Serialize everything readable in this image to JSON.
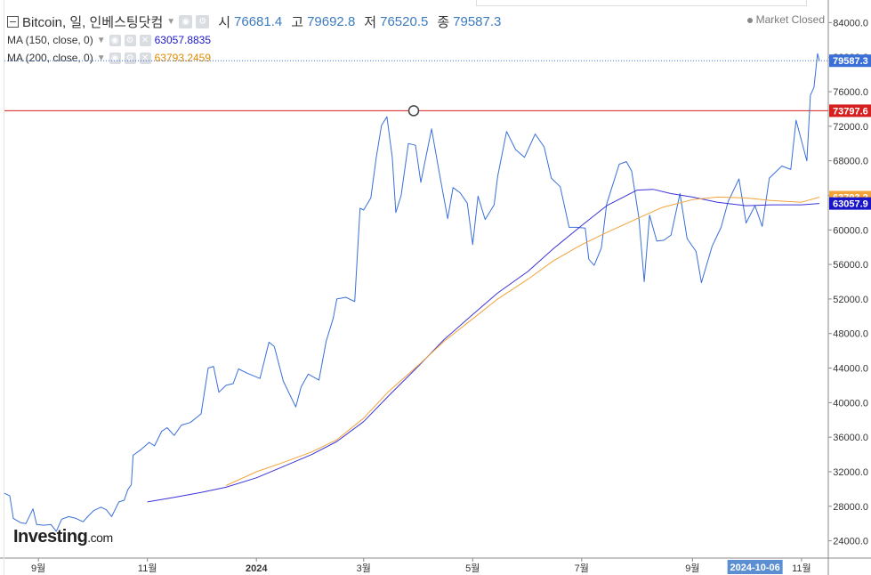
{
  "header": {
    "symbol": "Bitcoin, 일, 인베스팅닷컴",
    "open_key": "시",
    "open": "76681.4",
    "high_key": "고",
    "high": "79692.8",
    "low_key": "저",
    "low": "76520.5",
    "close_key": "종",
    "close": "79587.3",
    "ma150_label": "MA (150, close, 0)",
    "ma150_value": "63057.8835",
    "ma200_label": "MA (200, close, 0)",
    "ma200_value": "63793.2459",
    "market_status": "Market Closed"
  },
  "logo": {
    "main": "Investing",
    "suffix": ".com"
  },
  "colors": {
    "price": "#3a6fd8",
    "ma150": "#3b33d9",
    "ma200": "#f2a33a",
    "hline": "#d62020",
    "last_tag": "#3a6fd8",
    "hline_tag": "#d62020",
    "ma200_tag": "#f2a33a",
    "ma150_tag": "#1a16c7",
    "date_tag": "#5b8fd1"
  },
  "icons": [
    "collapse-icon",
    "eye-icon",
    "settings-icon",
    "close-icon",
    "dropdown-caret-icon"
  ],
  "chart_data": {
    "type": "line",
    "y_range": [
      22000,
      86000
    ],
    "y_ticks": [
      24000,
      28000,
      32000,
      36000,
      40000,
      44000,
      48000,
      52000,
      56000,
      60000,
      64000,
      68000,
      72000,
      76000,
      80000,
      84000
    ],
    "y_tick_labels": [
      "24000.0",
      "28000.0",
      "32000.0",
      "36000.0",
      "40000.0",
      "44000.0",
      "48000.0",
      "52000.0",
      "56000.0",
      "60000.0",
      "64000.0",
      "68000.0",
      "72000.0",
      "76000.0",
      "80000.0",
      "84000.0"
    ],
    "x_range": [
      "2023-08-13",
      "2024-11-16"
    ],
    "x_ticks": [
      {
        "date": "2023-09-01",
        "label": "9월",
        "bold": false
      },
      {
        "date": "2023-11-01",
        "label": "11월",
        "bold": false
      },
      {
        "date": "2024-01-01",
        "label": "2024",
        "bold": true
      },
      {
        "date": "2024-03-01",
        "label": "3월",
        "bold": false
      },
      {
        "date": "2024-05-01",
        "label": "5월",
        "bold": false
      },
      {
        "date": "2024-07-01",
        "label": "7월",
        "bold": false
      },
      {
        "date": "2024-09-01",
        "label": "9월",
        "bold": false
      },
      {
        "date": "2024-11-01",
        "label": "11월",
        "bold": false
      }
    ],
    "x_cursor_label": {
      "date": "2024-10-06",
      "label": "2024-10-06"
    },
    "horizontal_line": {
      "value": 73797.6,
      "label": "73797.6",
      "anchor_date": "2024-03-29"
    },
    "last_price_label": {
      "value": 79587.3,
      "label": "79587.3"
    },
    "ma_labels": [
      {
        "name": "MA (200, close, 0)",
        "value": 63793.2,
        "label": "63793.2"
      },
      {
        "name": "MA (150, close, 0)",
        "value": 63057.9,
        "label": "63057.9"
      }
    ],
    "series": [
      {
        "name": "Bitcoin",
        "points": [
          [
            "2023-08-13",
            29500
          ],
          [
            "2023-08-16",
            29200
          ],
          [
            "2023-08-18",
            26600
          ],
          [
            "2023-08-22",
            26100
          ],
          [
            "2023-08-25",
            26000
          ],
          [
            "2023-08-29",
            27700
          ],
          [
            "2023-08-31",
            25900
          ],
          [
            "2023-09-04",
            25800
          ],
          [
            "2023-09-08",
            25900
          ],
          [
            "2023-09-11",
            25100
          ],
          [
            "2023-09-14",
            26500
          ],
          [
            "2023-09-18",
            26800
          ],
          [
            "2023-09-22",
            26600
          ],
          [
            "2023-09-26",
            26200
          ],
          [
            "2023-09-29",
            26900
          ],
          [
            "2023-10-02",
            27500
          ],
          [
            "2023-10-06",
            27900
          ],
          [
            "2023-10-09",
            27600
          ],
          [
            "2023-10-12",
            26800
          ],
          [
            "2023-10-16",
            28500
          ],
          [
            "2023-10-19",
            28700
          ],
          [
            "2023-10-21",
            29900
          ],
          [
            "2023-10-23",
            30500
          ],
          [
            "2023-10-24",
            33900
          ],
          [
            "2023-10-28",
            34500
          ],
          [
            "2023-11-02",
            35400
          ],
          [
            "2023-11-05",
            35000
          ],
          [
            "2023-11-09",
            36700
          ],
          [
            "2023-11-12",
            37100
          ],
          [
            "2023-11-16",
            36200
          ],
          [
            "2023-11-20",
            37400
          ],
          [
            "2023-11-25",
            37700
          ],
          [
            "2023-12-01",
            38700
          ],
          [
            "2023-12-05",
            44000
          ],
          [
            "2023-12-08",
            44200
          ],
          [
            "2023-12-11",
            41200
          ],
          [
            "2023-12-15",
            42000
          ],
          [
            "2023-12-19",
            42200
          ],
          [
            "2023-12-22",
            43900
          ],
          [
            "2023-12-27",
            43400
          ],
          [
            "2024-01-03",
            42800
          ],
          [
            "2024-01-08",
            47000
          ],
          [
            "2024-01-11",
            46500
          ],
          [
            "2024-01-16",
            42500
          ],
          [
            "2024-01-23",
            39500
          ],
          [
            "2024-01-26",
            41800
          ],
          [
            "2024-01-30",
            43300
          ],
          [
            "2024-02-05",
            42600
          ],
          [
            "2024-02-09",
            47100
          ],
          [
            "2024-02-13",
            49800
          ],
          [
            "2024-02-15",
            52000
          ],
          [
            "2024-02-20",
            52200
          ],
          [
            "2024-02-25",
            51700
          ],
          [
            "2024-02-28",
            62500
          ],
          [
            "2024-03-01",
            62300
          ],
          [
            "2024-03-05",
            63700
          ],
          [
            "2024-03-08",
            68300
          ],
          [
            "2024-03-11",
            72100
          ],
          [
            "2024-03-14",
            73100
          ],
          [
            "2024-03-17",
            68400
          ],
          [
            "2024-03-19",
            62000
          ],
          [
            "2024-03-22",
            64000
          ],
          [
            "2024-03-26",
            70000
          ],
          [
            "2024-03-30",
            69800
          ],
          [
            "2024-04-02",
            65500
          ],
          [
            "2024-04-08",
            71700
          ],
          [
            "2024-04-12",
            67000
          ],
          [
            "2024-04-17",
            61300
          ],
          [
            "2024-04-20",
            64900
          ],
          [
            "2024-04-24",
            64300
          ],
          [
            "2024-04-28",
            63100
          ],
          [
            "2024-05-01",
            58300
          ],
          [
            "2024-05-04",
            63900
          ],
          [
            "2024-05-08",
            61200
          ],
          [
            "2024-05-13",
            62900
          ],
          [
            "2024-05-15",
            66200
          ],
          [
            "2024-05-20",
            71400
          ],
          [
            "2024-05-25",
            69300
          ],
          [
            "2024-05-30",
            68400
          ],
          [
            "2024-06-05",
            71100
          ],
          [
            "2024-06-10",
            69600
          ],
          [
            "2024-06-14",
            66000
          ],
          [
            "2024-06-19",
            65000
          ],
          [
            "2024-06-24",
            60300
          ],
          [
            "2024-06-28",
            60300
          ],
          [
            "2024-07-03",
            60200
          ],
          [
            "2024-07-05",
            56600
          ],
          [
            "2024-07-08",
            55900
          ],
          [
            "2024-07-12",
            57900
          ],
          [
            "2024-07-15",
            63000
          ],
          [
            "2024-07-22",
            67600
          ],
          [
            "2024-07-26",
            67900
          ],
          [
            "2024-07-29",
            66800
          ],
          [
            "2024-08-02",
            61400
          ],
          [
            "2024-08-05",
            54000
          ],
          [
            "2024-08-08",
            61700
          ],
          [
            "2024-08-12",
            58700
          ],
          [
            "2024-08-16",
            58800
          ],
          [
            "2024-08-20",
            59400
          ],
          [
            "2024-08-25",
            64200
          ],
          [
            "2024-08-29",
            59000
          ],
          [
            "2024-09-03",
            57500
          ],
          [
            "2024-09-06",
            53900
          ],
          [
            "2024-09-12",
            58100
          ],
          [
            "2024-09-17",
            60300
          ],
          [
            "2024-09-21",
            63300
          ],
          [
            "2024-09-27",
            65900
          ],
          [
            "2024-10-01",
            60800
          ],
          [
            "2024-10-06",
            62800
          ],
          [
            "2024-10-10",
            60400
          ],
          [
            "2024-10-14",
            66000
          ],
          [
            "2024-10-21",
            67400
          ],
          [
            "2024-10-26",
            67000
          ],
          [
            "2024-10-29",
            72700
          ],
          [
            "2024-11-04",
            68000
          ],
          [
            "2024-11-06",
            75600
          ],
          [
            "2024-11-08",
            76500
          ],
          [
            "2024-11-10",
            80400
          ],
          [
            "2024-11-11",
            79587.3
          ]
        ]
      },
      {
        "name": "MA (150, close, 0)",
        "points": [
          [
            "2023-11-01",
            28500
          ],
          [
            "2023-11-15",
            29000
          ],
          [
            "2023-12-01",
            29600
          ],
          [
            "2023-12-15",
            30200
          ],
          [
            "2024-01-01",
            31300
          ],
          [
            "2024-01-15",
            32500
          ],
          [
            "2024-02-01",
            34000
          ],
          [
            "2024-02-15",
            35500
          ],
          [
            "2024-03-01",
            37800
          ],
          [
            "2024-03-15",
            40800
          ],
          [
            "2024-04-01",
            44300
          ],
          [
            "2024-04-15",
            47300
          ],
          [
            "2024-05-01",
            50200
          ],
          [
            "2024-05-15",
            52700
          ],
          [
            "2024-06-01",
            55200
          ],
          [
            "2024-06-15",
            57800
          ],
          [
            "2024-07-01",
            60500
          ],
          [
            "2024-07-15",
            62800
          ],
          [
            "2024-08-01",
            64600
          ],
          [
            "2024-08-10",
            64700
          ],
          [
            "2024-08-20",
            64200
          ],
          [
            "2024-09-01",
            63800
          ],
          [
            "2024-09-15",
            63200
          ],
          [
            "2024-10-01",
            62800
          ],
          [
            "2024-10-15",
            62900
          ],
          [
            "2024-11-01",
            62900
          ],
          [
            "2024-11-11",
            63057.9
          ]
        ]
      },
      {
        "name": "MA (200, close, 0)",
        "points": [
          [
            "2023-12-15",
            30400
          ],
          [
            "2024-01-01",
            32000
          ],
          [
            "2024-01-15",
            33000
          ],
          [
            "2024-02-01",
            34300
          ],
          [
            "2024-02-15",
            35700
          ],
          [
            "2024-03-01",
            38200
          ],
          [
            "2024-03-15",
            41300
          ],
          [
            "2024-04-01",
            44400
          ],
          [
            "2024-04-15",
            47100
          ],
          [
            "2024-05-01",
            49700
          ],
          [
            "2024-05-15",
            52000
          ],
          [
            "2024-06-01",
            54300
          ],
          [
            "2024-06-15",
            56400
          ],
          [
            "2024-07-01",
            58300
          ],
          [
            "2024-07-15",
            59700
          ],
          [
            "2024-08-01",
            61300
          ],
          [
            "2024-08-15",
            62600
          ],
          [
            "2024-09-01",
            63500
          ],
          [
            "2024-09-15",
            63800
          ],
          [
            "2024-10-01",
            63700
          ],
          [
            "2024-10-15",
            63400
          ],
          [
            "2024-11-01",
            63200
          ],
          [
            "2024-11-11",
            63793.2
          ]
        ]
      }
    ]
  }
}
